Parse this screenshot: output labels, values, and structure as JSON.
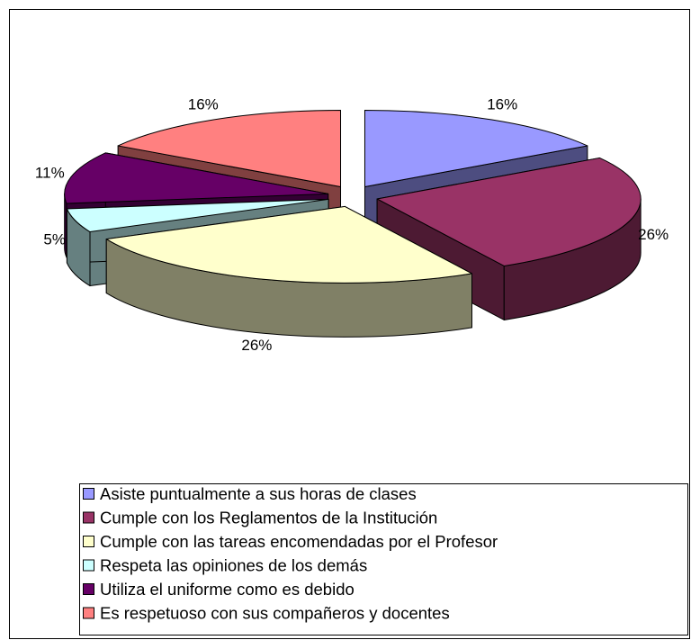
{
  "chart_data": {
    "type": "pie3d",
    "categories": [
      "Asiste puntualmente a sus horas de clases",
      "Cumple con los Reglamentos de la Institución",
      "Cumple con las tareas encomendadas por el Profesor",
      "Respeta las opiniones de los demás",
      "Utiliza el uniforme como es debido",
      "Es respetuoso con sus compañeros y docentes"
    ],
    "values": [
      16,
      26,
      26,
      5,
      11,
      16
    ],
    "value_labels": [
      "16%",
      "26%",
      "26%",
      "5%",
      "11%",
      "16%"
    ],
    "colors": [
      "#9999ff",
      "#993366",
      "#ffffcc",
      "#ccffff",
      "#660066",
      "#ff8080"
    ],
    "legend": "bottom"
  }
}
